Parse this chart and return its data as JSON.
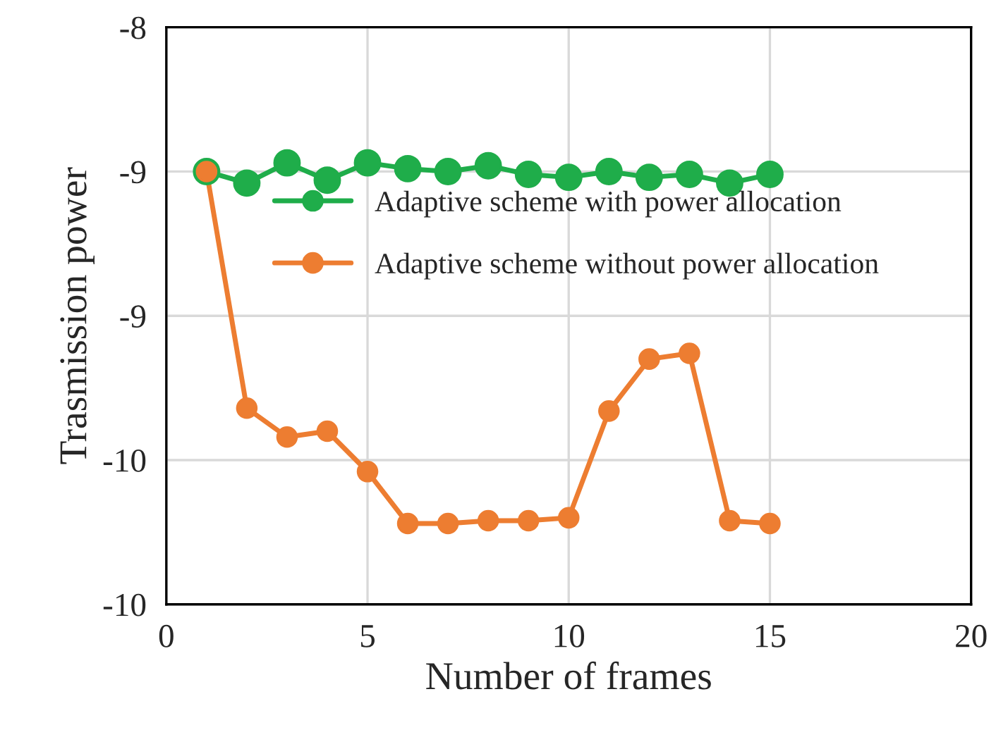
{
  "chart_data": {
    "type": "line",
    "xlabel": "Number of frames",
    "ylabel": "Trasmission power",
    "xlim": [
      0,
      20
    ],
    "xticks": [
      0,
      5,
      10,
      15,
      20
    ],
    "ylim": [
      -10,
      -8
    ],
    "yticks": [
      -8,
      {
        "value": -8.5,
        "label": "-9"
      },
      -9,
      {
        "value": -9.5,
        "label": "-10"
      },
      -10
    ],
    "grid": true,
    "legend": "center",
    "marker": "circle",
    "line_style": "solid",
    "x": [
      1,
      2,
      3,
      4,
      5,
      6,
      7,
      8,
      9,
      10,
      11,
      12,
      13,
      14,
      15
    ],
    "series": [
      {
        "name": "Adaptive scheme with power allocation",
        "color": "#1fad4a",
        "values": [
          -8.5,
          -8.54,
          -8.47,
          -8.53,
          -8.47,
          -8.49,
          -8.5,
          -8.48,
          -8.51,
          -8.52,
          -8.5,
          -8.52,
          -8.51,
          -8.54,
          -8.51
        ]
      },
      {
        "name": "Adaptive scheme without power allocation",
        "color": "#ed7d31",
        "values": [
          -8.5,
          -9.32,
          -9.42,
          -9.4,
          -9.54,
          -9.72,
          -9.72,
          -9.71,
          -9.71,
          -9.7,
          -9.33,
          -9.15,
          -9.13,
          -9.71,
          -9.72
        ]
      }
    ]
  }
}
